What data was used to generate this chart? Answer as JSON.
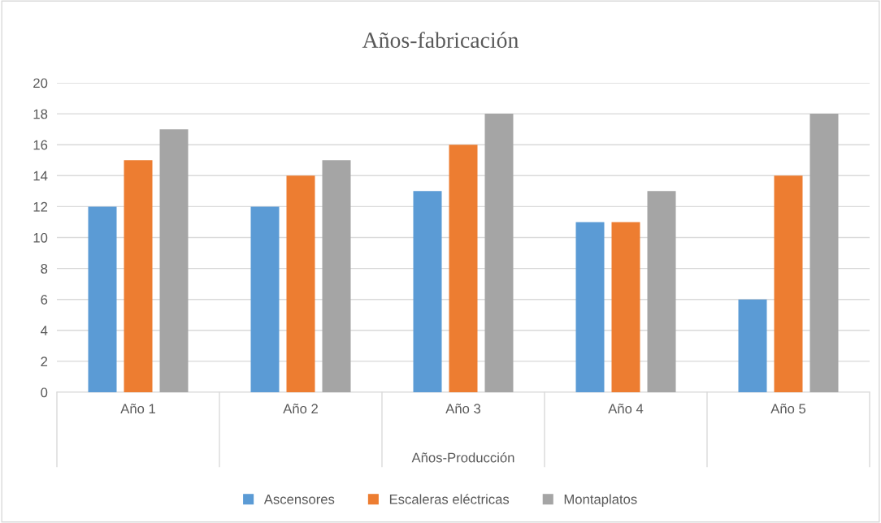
{
  "chart_data": {
    "type": "bar",
    "title": "Años-fabricación",
    "xlabel": "Años-Producción",
    "categories": [
      "Año 1",
      "Año 2",
      "Año 3",
      "Año 4",
      "Año 5"
    ],
    "series": [
      {
        "name": "Ascensores",
        "color": "#5b9bd5",
        "values": [
          12,
          12,
          13,
          11,
          6
        ]
      },
      {
        "name": "Escaleras eléctricas",
        "color": "#ed7d31",
        "values": [
          15,
          14,
          16,
          11,
          14
        ]
      },
      {
        "name": "Montaplatos",
        "color": "#a5a5a5",
        "values": [
          17,
          15,
          18,
          13,
          18
        ]
      }
    ],
    "ylim": [
      0,
      20
    ],
    "yticks": [
      0,
      2,
      4,
      6,
      8,
      10,
      12,
      14,
      16,
      18,
      20
    ],
    "grid": "y",
    "legend": "bottom"
  }
}
